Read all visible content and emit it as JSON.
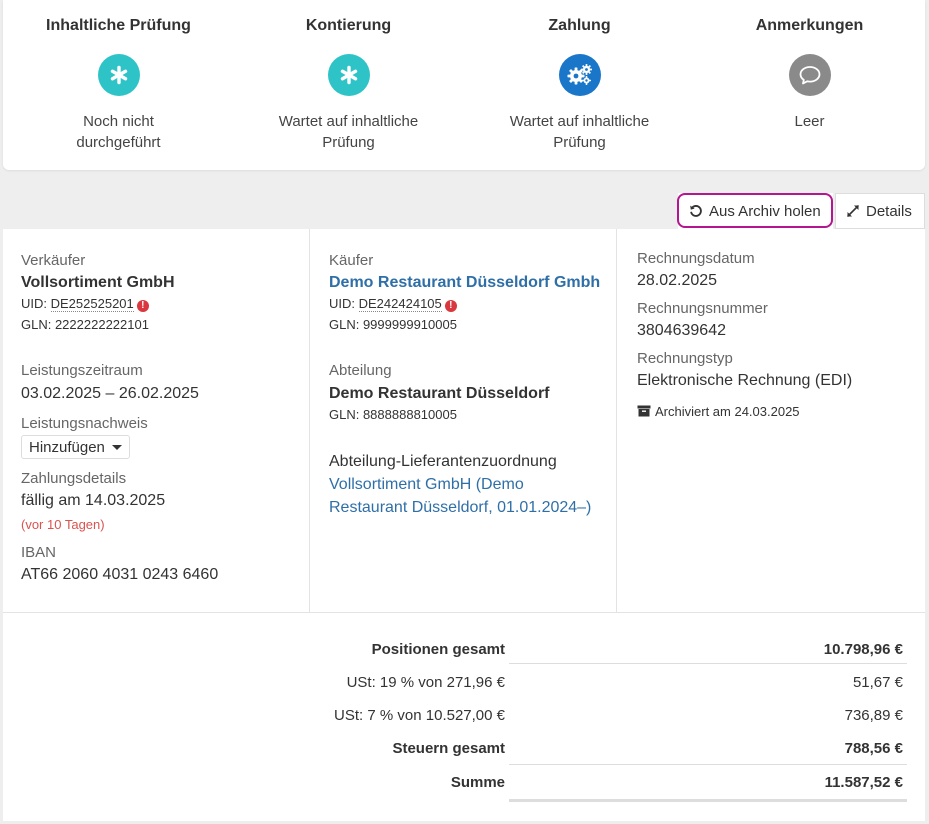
{
  "status": [
    {
      "title": "Inhaltliche Prüfung",
      "text": "Noch nicht durchgeführt",
      "icon": "asterisk-icon",
      "color": "#2ec4c7"
    },
    {
      "title": "Kontierung",
      "text": "Wartet auf inhaltliche Prüfung",
      "icon": "asterisk-icon",
      "color": "#2ec4c7"
    },
    {
      "title": "Zahlung",
      "text": "Wartet auf inhaltliche Prüfung",
      "icon": "gears-icon",
      "color": "#1976c9"
    },
    {
      "title": "Anmerkungen",
      "text": "Leer",
      "icon": "comment-icon",
      "color": "#8a8a8a"
    }
  ],
  "actions": {
    "archive_label": "Aus Archiv holen",
    "details_label": "Details"
  },
  "seller": {
    "label": "Verkäufer",
    "name": "Vollsortiment GmbH",
    "uid_prefix": "UID: ",
    "uid": "DE252525201",
    "gln": "GLN: 2222222222101",
    "period_label": "Leistungszeitraum",
    "period": "03.02.2025 – 26.02.2025",
    "proof_label": "Leistungsnachweis",
    "proof_dropdown": "Hinzufügen",
    "payment_label": "Zahlungsdetails",
    "due": "fällig am 14.03.2025",
    "due_ago": "(vor 10 Tagen)",
    "iban_label": "IBAN",
    "iban": "AT66 2060 4031 0243 6460"
  },
  "buyer": {
    "label": "Käufer",
    "name": "Demo Restaurant Düsseldorf Gmbh",
    "uid_prefix": "UID: ",
    "uid": "DE242424105",
    "gln": "GLN: 9999999910005",
    "dept_label": "Abteilung",
    "dept": "Demo Restaurant Düsseldorf",
    "dept_gln": "GLN: 8888888810005",
    "assign_label": "Abteilung-Lieferantenzuordnung",
    "assign_line1": "Vollsortiment GmbH (Demo",
    "assign_line2": "Restaurant Düsseldorf, 01.01.2024–)"
  },
  "invoice": {
    "date_label": "Rechnungsdatum",
    "date": "28.02.2025",
    "number_label": "Rechnungsnummer",
    "number": "3804639642",
    "type_label": "Rechnungstyp",
    "type": "Elektronische Rechnung (EDI)",
    "archived": "Archiviert am 24.03.2025"
  },
  "totals": [
    {
      "label": "Positionen gesamt",
      "value": "10.798,96 €",
      "bold": true
    },
    {
      "label": "USt: 19 % von 271,96 €",
      "value": "51,67 €",
      "bold": false
    },
    {
      "label": "USt: 7 % von 10.527,00 €",
      "value": "736,89 €",
      "bold": false
    },
    {
      "label": "Steuern gesamt",
      "value": "788,56 €",
      "bold": true
    },
    {
      "label": "Summe",
      "value": "11.587,52 €",
      "bold": true
    }
  ],
  "colors": {
    "teal": "#2ec4c7",
    "blue": "#1976c9",
    "grey": "#8a8a8a",
    "link": "#2f6fa8",
    "highlight": "#b3168f",
    "warning": "#d9383f"
  }
}
